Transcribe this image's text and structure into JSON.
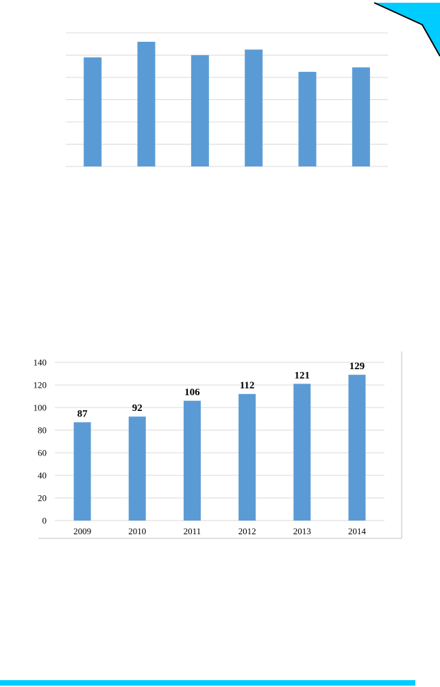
{
  "colors": {
    "bar": "#5B9BD5",
    "grid": "#D9D9D9",
    "accent": "#00CCFF",
    "corner_outline": "#000000"
  },
  "chart_data": [
    {
      "type": "bar",
      "title": "",
      "xlabel": "",
      "ylabel": "",
      "categories": [
        "",
        "",
        "",
        "",
        "",
        ""
      ],
      "values": [
        98,
        112,
        100,
        105,
        85,
        89
      ],
      "ylim": [
        0,
        120
      ],
      "grid": true,
      "legend": "none",
      "axis_labels_visible": false
    },
    {
      "type": "bar",
      "title": "",
      "xlabel": "",
      "ylabel": "",
      "categories": [
        "2009",
        "2010",
        "2011",
        "2012",
        "2013",
        "2014"
      ],
      "values": [
        87,
        92,
        106,
        112,
        121,
        129
      ],
      "data_labels": [
        "87",
        "92",
        "106",
        "112",
        "121",
        "129"
      ],
      "y_ticks": [
        "0",
        "20",
        "40",
        "60",
        "80",
        "100",
        "120",
        "140"
      ],
      "ylim": [
        0,
        140
      ],
      "grid": true,
      "legend": "none"
    }
  ]
}
